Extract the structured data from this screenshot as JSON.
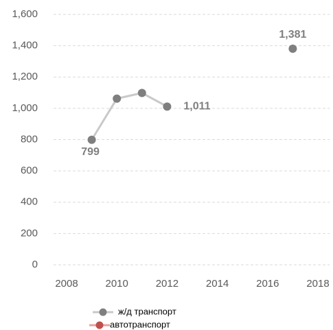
{
  "chart_data": {
    "type": "line",
    "x": [
      2009,
      2010,
      2011,
      2012,
      2013,
      2014,
      2015,
      2016,
      2017
    ],
    "series": [
      {
        "name": "ж/д транспорт",
        "color": "#7f7f7f",
        "line_color": "#c9c9c9",
        "values": [
          799,
          1062,
          1098,
          1011,
          null,
          null,
          null,
          null,
          1381
        ],
        "value_labels": [
          "799",
          null,
          null,
          "1,011",
          null,
          null,
          null,
          null,
          "1,381"
        ]
      },
      {
        "name": "автотранспорт",
        "color": "#c0504d",
        "line_color": "#e8a3a1",
        "values": [
          null,
          null,
          null,
          null,
          null,
          null,
          null,
          null,
          null
        ]
      }
    ],
    "xlim": [
      2008,
      2018
    ],
    "xticks": [
      2008,
      2010,
      2012,
      2014,
      2016,
      2018
    ],
    "ylim": [
      0,
      1600
    ],
    "yticks": [
      0,
      200,
      400,
      600,
      800,
      {
        "value": 1000,
        "label": "1,000"
      },
      {
        "value": 1200,
        "label": "1,200"
      },
      {
        "value": 1400,
        "label": "1,400"
      },
      {
        "value": 1600,
        "label": "1,600"
      }
    ],
    "grid": true,
    "legend": "bottom"
  }
}
